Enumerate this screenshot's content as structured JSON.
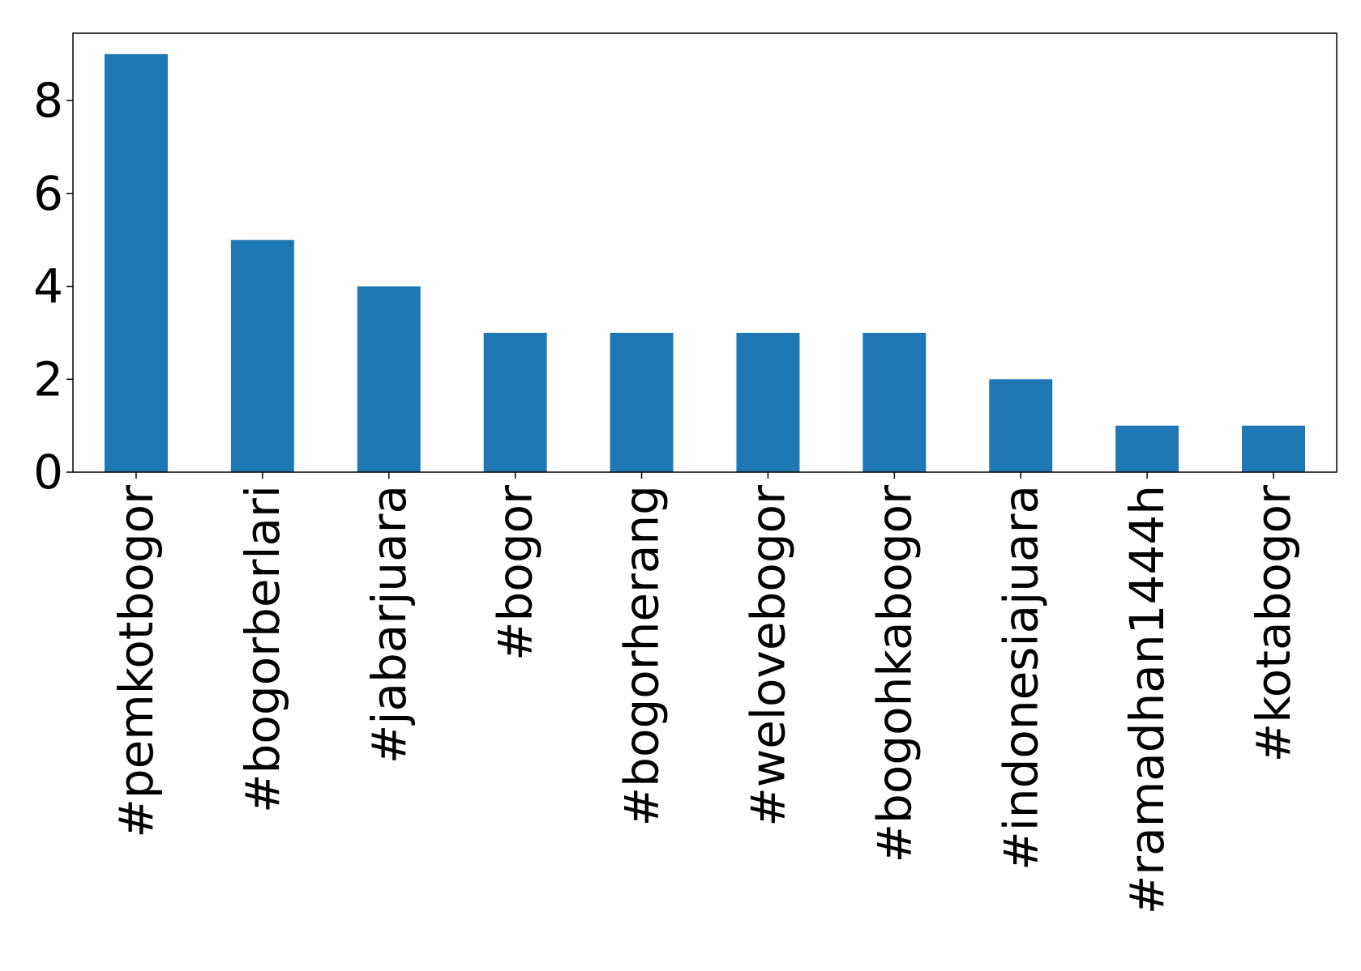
{
  "chart_data": {
    "type": "bar",
    "categories": [
      "#pemkotbogor",
      "#bogorberlari",
      "#jabarjuara",
      "#bogor",
      "#bogorherang",
      "#welovebogor",
      "#bogohkabogor",
      "#indonesiajuara",
      "#ramadhan1444h",
      "#kotabogor"
    ],
    "values": [
      9,
      5,
      4,
      3,
      3,
      3,
      3,
      2,
      1,
      1
    ],
    "title": "",
    "xlabel": "",
    "ylabel": "",
    "ylim": [
      0,
      9.45
    ],
    "yticks": [
      0,
      2,
      4,
      6,
      8
    ],
    "grid": false,
    "legend": "none",
    "bar_color": "#1f77b4"
  }
}
